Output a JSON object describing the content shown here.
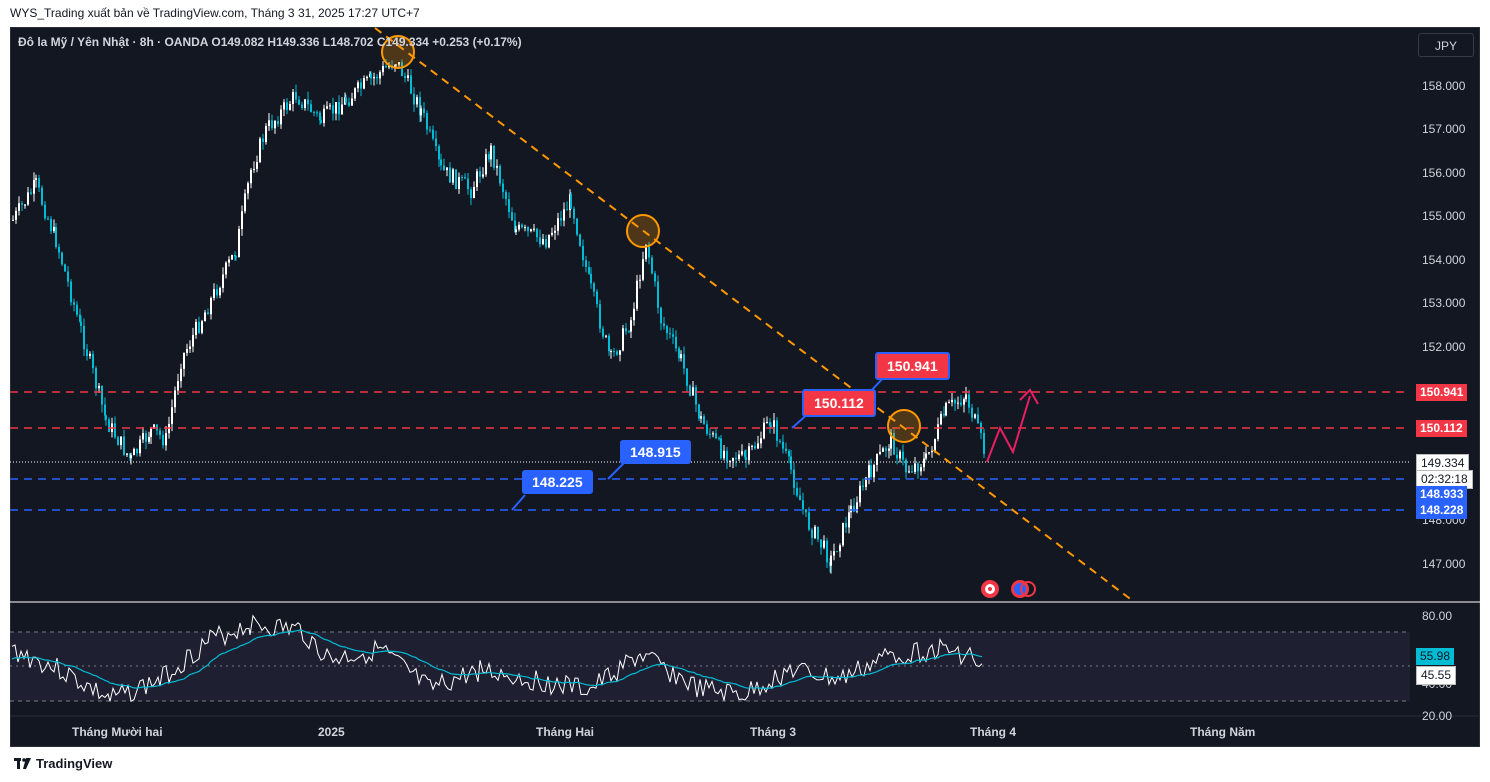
{
  "header": {
    "publisher_text": "WYS_Trading xuất bản về TradingView.com, Tháng 3 31, 2025 17:27 UTC+7"
  },
  "legend": {
    "text": "Đô la Mỹ / Yên Nhật · 8h · OANDA  O149.082  H149.336  L148.702  C149.334  +0.253 (+0.17%)"
  },
  "currency_button": "JPY",
  "price_axis": {
    "labels": [
      "158.000",
      "157.000",
      "156.000",
      "155.000",
      "154.000",
      "153.000",
      "152.000",
      "148.000",
      "147.000"
    ],
    "current_price": "149.334",
    "countdown": "02:32:18",
    "tag_150941": "150.941",
    "tag_150112": "150.112",
    "tag_148933": "148.933",
    "tag_148228": "148.228"
  },
  "rsi_axis": {
    "labels": [
      "80.00",
      "40.00",
      "20.00"
    ],
    "ma_value": "55.98",
    "rsi_value": "45.55"
  },
  "time_axis": {
    "labels": [
      "Tháng Mười hai",
      "2025",
      "Tháng Hai",
      "Tháng 3",
      "Tháng 4",
      "Tháng Năm"
    ]
  },
  "callouts": {
    "c1": "148.225",
    "c2": "148.915",
    "c3": "150.112",
    "c4": "150.941"
  },
  "colors": {
    "background": "#131722",
    "up_candle": "#ffffff",
    "down_candle": "#00bcd4",
    "resistance": "#f23645",
    "support": "#2962ff",
    "trendline": "#ff9800",
    "rsi_line": "#ffffff",
    "rsi_ma": "#00bcd4"
  },
  "footer": {
    "brand": "TradingView"
  }
}
